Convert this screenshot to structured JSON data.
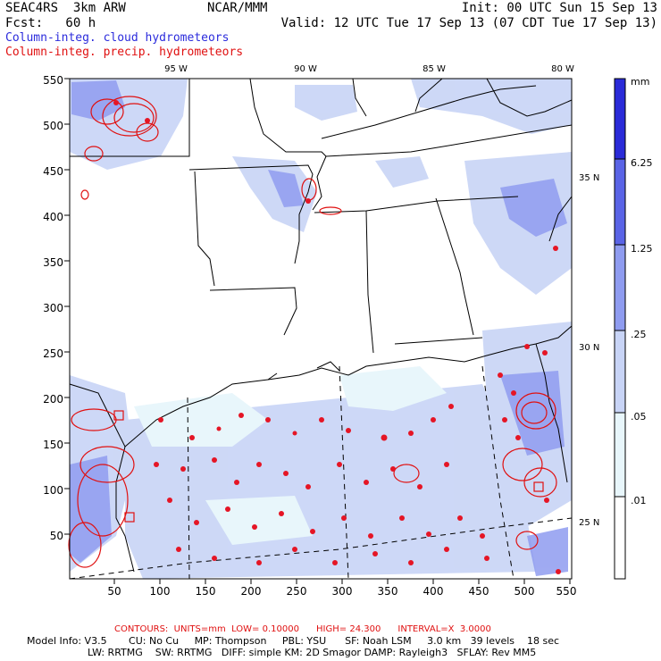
{
  "header": {
    "model": "SEAC4RS  3km ARW",
    "fcst": "Fcst:   60 h",
    "center": "NCAR/MMM",
    "init": "Init: 00 UTC Sun 15 Sep 13",
    "valid": "Valid: 12 UTC Tue 17 Sep 13 (07 CDT Tue 17 Sep 13)",
    "legend_cloud": "Column-integ. cloud hydrometeors",
    "legend_precip": "Column-integ. precip. hydrometeors"
  },
  "colors": {
    "cloud": "#2b2bdc",
    "precip": "#e01010",
    "scale": [
      "#ffffff",
      "#e8f6fb",
      "#c8d4f6",
      "#8f9cf0",
      "#5a64e6",
      "#2a2bd8"
    ]
  },
  "map": {
    "lon_labels": [
      "95 W",
      "90 W",
      "85 W",
      "80 W"
    ],
    "lat_labels": [
      "35 N",
      "30 N",
      "25 N"
    ],
    "y_ticks": [
      "550",
      "500",
      "450",
      "400",
      "350",
      "300",
      "250",
      "200",
      "150",
      "100",
      "50"
    ],
    "x_ticks": [
      "50",
      "100",
      "150",
      "200",
      "250",
      "300",
      "350",
      "400",
      "450",
      "500",
      "550"
    ]
  },
  "colorbar": {
    "unit": "mm",
    "labels": [
      "6.25",
      "1.25",
      ".25",
      ".05",
      ".01"
    ]
  },
  "footer": {
    "contours": "CONTOURS:  UNITS=mm  LOW= 0.10000      HIGH= 24.300      INTERVAL=X  3.0000",
    "model_info": "Model Info: V3.5       CU: No Cu     MP: Thompson     PBL: YSU      SF: Noah LSM     3.0 km   39 levels    18 sec",
    "physics": "LW: RRTMG    SW: RRTMG   DIFF: simple KM: 2D Smagor DAMP: Rayleigh3   SFLAY: Rev MM5"
  }
}
